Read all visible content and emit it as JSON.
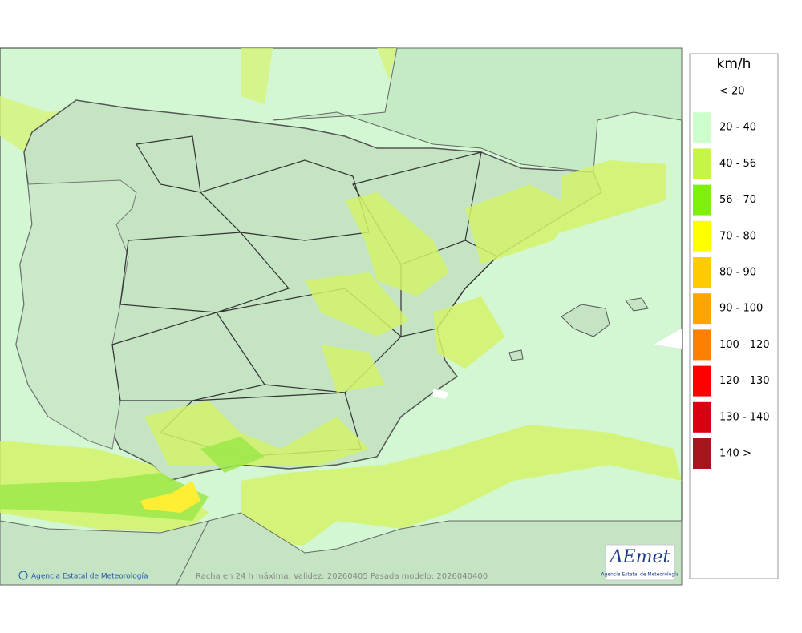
{
  "map": {
    "credit": "Agencia Estatal de Meteorología",
    "caption": "Racha en 24 h máxima. Validez: 20260405 Pasada modelo: 2026040400",
    "logo": {
      "name": "AEmet",
      "subtitle": "Agencia Estatal de Meteorología"
    }
  },
  "legend": {
    "title": "km/h",
    "items": [
      {
        "label": "< 20"
      },
      {
        "label": "20 - 40",
        "color": "#ccffcc"
      },
      {
        "label": "40 - 56",
        "color": "#c6f545"
      },
      {
        "label": "56 - 70",
        "color": "#7ff00a"
      },
      {
        "label": "70 - 80",
        "color": "#ffff00"
      },
      {
        "label": "80 - 90",
        "color": "#ffcc00"
      },
      {
        "label": "90 - 100",
        "color": "#ffa500"
      },
      {
        "label": "100 - 120",
        "color": "#ff8000"
      },
      {
        "label": "120 - 130",
        "color": "#ff0000"
      },
      {
        "label": "130 - 140",
        "color": "#d90010"
      },
      {
        "label": "140 >",
        "color": "#a8141e"
      }
    ]
  }
}
